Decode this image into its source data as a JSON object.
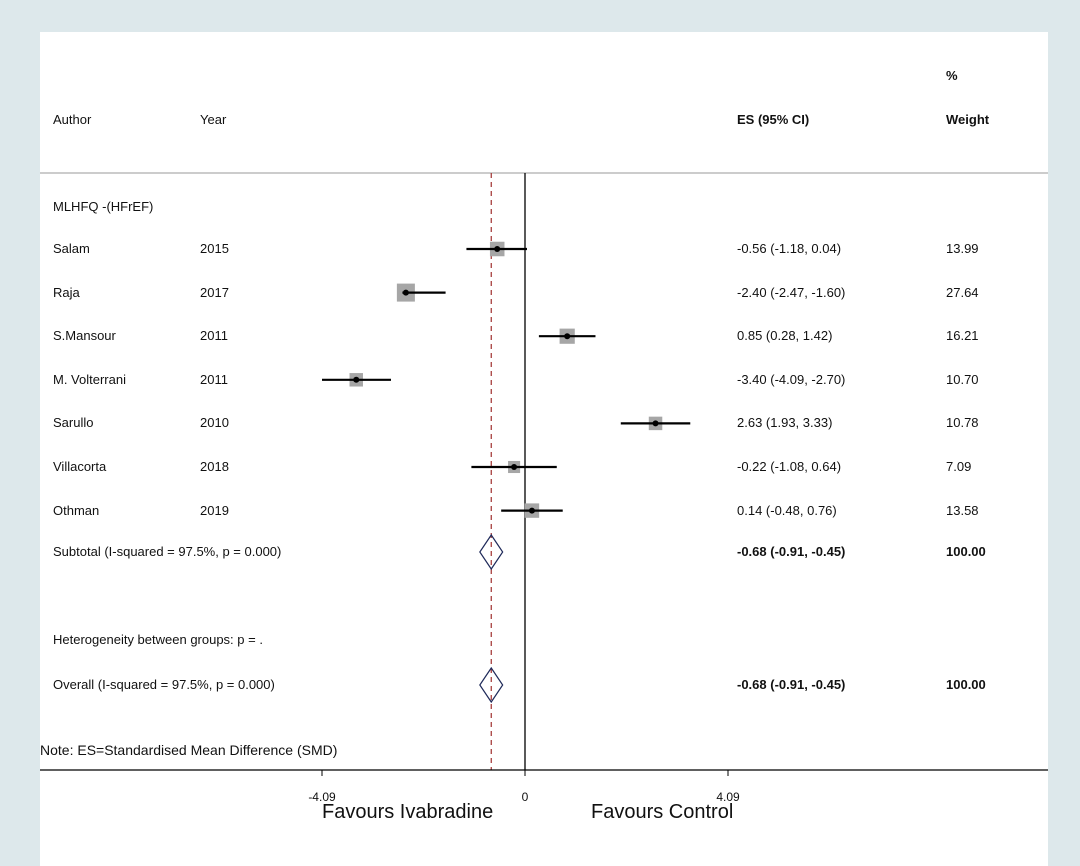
{
  "chart_data": {
    "type": "forest",
    "headers": {
      "author": "Author",
      "year": "Year",
      "es": "ES (95% CI)",
      "weight_top": "%",
      "weight": "Weight"
    },
    "group_label": "MLHFQ -(HFrEF)",
    "studies": [
      {
        "author": "Salam",
        "year": "2015",
        "es": -0.56,
        "lo": -1.18,
        "hi": 0.04,
        "es_text": "-0.56 (-1.18, 0.04)",
        "weight": 13.99,
        "weight_text": "13.99"
      },
      {
        "author": "Raja",
        "year": "2017",
        "es": -2.4,
        "lo": -2.47,
        "hi": -1.6,
        "es_text": "-2.40 (-2.47, -1.60)",
        "weight": 27.64,
        "weight_text": "27.64"
      },
      {
        "author": "S.Mansour",
        "year": "2011",
        "es": 0.85,
        "lo": 0.28,
        "hi": 1.42,
        "es_text": "0.85 (0.28, 1.42)",
        "weight": 16.21,
        "weight_text": "16.21"
      },
      {
        "author": "M. Volterrani",
        "year": "2011",
        "es": -3.4,
        "lo": -4.09,
        "hi": -2.7,
        "es_text": "-3.40 (-4.09, -2.70)",
        "weight": 10.7,
        "weight_text": "10.70"
      },
      {
        "author": "Sarullo",
        "year": "2010",
        "es": 2.63,
        "lo": 1.93,
        "hi": 3.33,
        "es_text": "2.63 (1.93, 3.33)",
        "weight": 10.78,
        "weight_text": "10.78"
      },
      {
        "author": "Villacorta",
        "year": "2018",
        "es": -0.22,
        "lo": -1.08,
        "hi": 0.64,
        "es_text": "-0.22 (-1.08, 0.64)",
        "weight": 7.09,
        "weight_text": "7.09"
      },
      {
        "author": "Othman",
        "year": "2019",
        "es": 0.14,
        "lo": -0.48,
        "hi": 0.76,
        "es_text": "0.14 (-0.48, 0.76)",
        "weight": 13.58,
        "weight_text": "13.58"
      }
    ],
    "subtotal": {
      "label": "Subtotal  (I-squared = 97.5%, p = 0.000)",
      "es": -0.68,
      "lo": -0.91,
      "hi": -0.45,
      "es_text": "-0.68 (-0.91, -0.45)",
      "weight_text": "100.00"
    },
    "heterogeneity": "Heterogeneity between groups: p = .",
    "overall": {
      "label": "Overall  (I-squared = 97.5%, p = 0.000)",
      "es": -0.68,
      "lo": -0.91,
      "hi": -0.45,
      "es_text": "-0.68 (-0.91, -0.45)",
      "weight_text": "100.00"
    },
    "note": "Note: ES=Standardised Mean Difference (SMD)",
    "x_ticks": [
      -4.09,
      0,
      4.09
    ],
    "x_tick_labels": [
      "-4.09",
      "0",
      "4.09"
    ],
    "xlim": [
      -4.09,
      4.09
    ],
    "null_line": 0,
    "pooled_line": -0.68,
    "favours_left": "Favours Ivabradine",
    "favours_right": "Favours Control",
    "colors": {
      "background": "#dde8eb",
      "plot": "#ffffff",
      "box": "#a6a6a6",
      "pooled_line": "#a0302e",
      "diamond": "#1f2a5a"
    }
  }
}
